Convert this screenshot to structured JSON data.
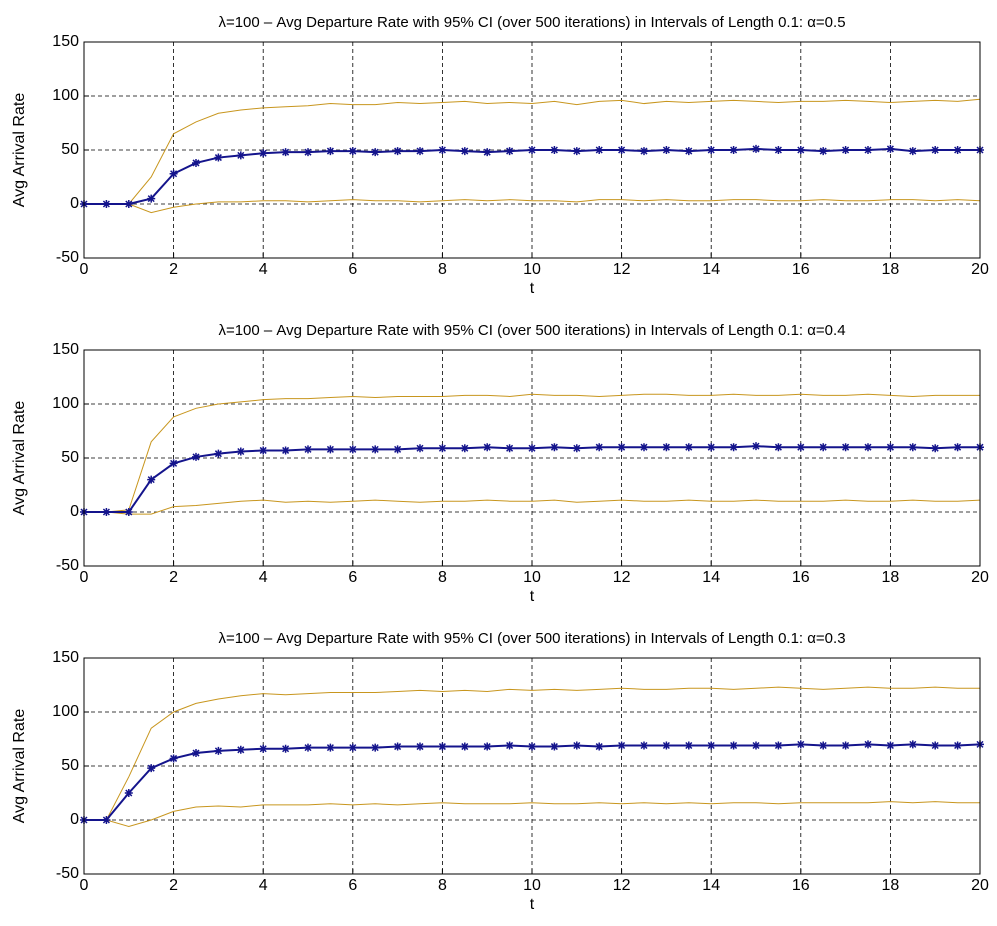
{
  "chart_data": [
    {
      "type": "line",
      "title": "λ=100 – Avg Departure Rate with 95% CI (over 500 iterations) in Intervals of Length 0.1: α=0.5",
      "xlabel": "t",
      "ylabel": "Avg Arrival Rate",
      "x": [
        0,
        0.5,
        1,
        1.5,
        2,
        2.5,
        3,
        3.5,
        4,
        4.5,
        5,
        5.5,
        6,
        6.5,
        7,
        7.5,
        8,
        8.5,
        9,
        9.5,
        10,
        10.5,
        11,
        11.5,
        12,
        12.5,
        13,
        13.5,
        14,
        14.5,
        15,
        15.5,
        16,
        16.5,
        17,
        17.5,
        18,
        18.5,
        19,
        19.5,
        20
      ],
      "series": [
        {
          "color": "#c8961e",
          "marker": "none",
          "values": [
            0,
            0,
            0,
            25,
            65,
            76,
            84,
            87,
            89,
            90,
            91,
            93,
            92,
            92,
            94,
            93,
            94,
            95,
            93,
            94,
            93,
            95,
            92,
            95,
            96,
            93,
            95,
            94,
            95,
            96,
            95,
            94,
            95,
            95,
            96,
            95,
            94,
            95,
            96,
            95,
            97
          ]
        },
        {
          "color": "#c8961e",
          "marker": "none",
          "values": [
            0,
            0,
            0,
            -8,
            -3,
            0,
            2,
            2,
            3,
            3,
            2,
            3,
            4,
            3,
            3,
            2,
            3,
            4,
            3,
            4,
            3,
            3,
            2,
            4,
            4,
            3,
            4,
            3,
            3,
            4,
            4,
            3,
            3,
            4,
            3,
            3,
            4,
            4,
            3,
            4,
            3
          ]
        },
        {
          "color": "#14148c",
          "marker": "*",
          "values": [
            0,
            0,
            0,
            5,
            28,
            38,
            43,
            45,
            47,
            48,
            48,
            49,
            49,
            48,
            49,
            49,
            50,
            49,
            48,
            49,
            50,
            50,
            49,
            50,
            50,
            49,
            50,
            49,
            50,
            50,
            51,
            50,
            50,
            49,
            50,
            50,
            51,
            49,
            50,
            50,
            50
          ]
        }
      ],
      "xlim": [
        0,
        20
      ],
      "ylim": [
        -50,
        150
      ],
      "xticks": [
        0,
        2,
        4,
        6,
        8,
        10,
        12,
        14,
        16,
        18,
        20
      ],
      "yticks": [
        -50,
        0,
        50,
        100,
        150
      ],
      "grid": true
    },
    {
      "type": "line",
      "title": "λ=100 – Avg Departure Rate with 95% CI (over 500 iterations) in Intervals of Length 0.1: α=0.4",
      "xlabel": "t",
      "ylabel": "Avg Arrival Rate",
      "x": [
        0,
        0.5,
        1,
        1.5,
        2,
        2.5,
        3,
        3.5,
        4,
        4.5,
        5,
        5.5,
        6,
        6.5,
        7,
        7.5,
        8,
        8.5,
        9,
        9.5,
        10,
        10.5,
        11,
        11.5,
        12,
        12.5,
        13,
        13.5,
        14,
        14.5,
        15,
        15.5,
        16,
        16.5,
        17,
        17.5,
        18,
        18.5,
        19,
        19.5,
        20
      ],
      "series": [
        {
          "color": "#c8961e",
          "marker": "none",
          "values": [
            0,
            0,
            2,
            65,
            88,
            96,
            100,
            102,
            104,
            105,
            105,
            106,
            107,
            106,
            107,
            107,
            107,
            108,
            108,
            107,
            109,
            108,
            108,
            107,
            108,
            109,
            109,
            108,
            108,
            109,
            108,
            108,
            109,
            108,
            108,
            109,
            108,
            107,
            108,
            108,
            108
          ]
        },
        {
          "color": "#c8961e",
          "marker": "none",
          "values": [
            0,
            0,
            -2,
            -2,
            5,
            6,
            8,
            10,
            11,
            9,
            10,
            9,
            10,
            11,
            10,
            9,
            10,
            10,
            11,
            10,
            10,
            11,
            9,
            10,
            11,
            10,
            10,
            11,
            10,
            10,
            11,
            10,
            10,
            10,
            11,
            10,
            10,
            11,
            10,
            10,
            11
          ]
        },
        {
          "color": "#14148c",
          "marker": "*",
          "values": [
            0,
            0,
            0,
            30,
            45,
            51,
            54,
            56,
            57,
            57,
            58,
            58,
            58,
            58,
            58,
            59,
            59,
            59,
            60,
            59,
            59,
            60,
            59,
            60,
            60,
            60,
            60,
            60,
            60,
            60,
            61,
            60,
            60,
            60,
            60,
            60,
            60,
            60,
            59,
            60,
            60
          ]
        }
      ],
      "xlim": [
        0,
        20
      ],
      "ylim": [
        -50,
        150
      ],
      "xticks": [
        0,
        2,
        4,
        6,
        8,
        10,
        12,
        14,
        16,
        18,
        20
      ],
      "yticks": [
        -50,
        0,
        50,
        100,
        150
      ],
      "grid": true
    },
    {
      "type": "line",
      "title": "λ=100 – Avg Departure Rate with 95% CI (over 500 iterations) in Intervals of Length 0.1: α=0.3",
      "xlabel": "t",
      "ylabel": "Avg Arrival Rate",
      "x": [
        0,
        0.5,
        1,
        1.5,
        2,
        2.5,
        3,
        3.5,
        4,
        4.5,
        5,
        5.5,
        6,
        6.5,
        7,
        7.5,
        8,
        8.5,
        9,
        9.5,
        10,
        10.5,
        11,
        11.5,
        12,
        12.5,
        13,
        13.5,
        14,
        14.5,
        15,
        15.5,
        16,
        16.5,
        17,
        17.5,
        18,
        18.5,
        19,
        19.5,
        20
      ],
      "series": [
        {
          "color": "#c8961e",
          "marker": "none",
          "values": [
            0,
            0,
            40,
            85,
            100,
            108,
            112,
            115,
            117,
            116,
            117,
            118,
            118,
            118,
            119,
            120,
            119,
            120,
            119,
            121,
            120,
            121,
            120,
            121,
            122,
            121,
            121,
            122,
            122,
            121,
            122,
            123,
            122,
            121,
            122,
            123,
            122,
            122,
            123,
            122,
            122
          ]
        },
        {
          "color": "#c8961e",
          "marker": "none",
          "values": [
            0,
            0,
            -6,
            0,
            8,
            12,
            13,
            12,
            14,
            14,
            14,
            15,
            14,
            15,
            14,
            15,
            16,
            15,
            15,
            15,
            16,
            15,
            15,
            16,
            15,
            16,
            15,
            16,
            15,
            16,
            16,
            15,
            16,
            16,
            16,
            16,
            17,
            16,
            17,
            16,
            16
          ]
        },
        {
          "color": "#14148c",
          "marker": "*",
          "values": [
            0,
            0,
            25,
            48,
            57,
            62,
            64,
            65,
            66,
            66,
            67,
            67,
            67,
            67,
            68,
            68,
            68,
            68,
            68,
            69,
            68,
            68,
            69,
            68,
            69,
            69,
            69,
            69,
            69,
            69,
            69,
            69,
            70,
            69,
            69,
            70,
            69,
            70,
            69,
            69,
            70
          ]
        }
      ],
      "xlim": [
        0,
        20
      ],
      "ylim": [
        -50,
        150
      ],
      "xticks": [
        0,
        2,
        4,
        6,
        8,
        10,
        12,
        14,
        16,
        18,
        20
      ],
      "yticks": [
        -50,
        0,
        50,
        100,
        150
      ],
      "grid": true
    }
  ]
}
